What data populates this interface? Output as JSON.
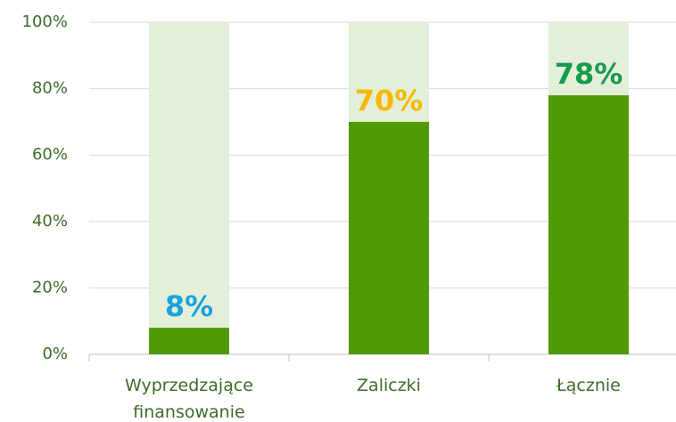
{
  "chart_data": {
    "type": "bar",
    "categories": [
      "Wyprzedzające finansowanie",
      "Zaliczki",
      "Łącznie"
    ],
    "values": [
      8,
      70,
      78
    ],
    "value_labels": [
      "8%",
      "70%",
      "78%"
    ],
    "label_colors": [
      "#1ba3dd",
      "#f5b700",
      "#169b4f"
    ],
    "color": "#4f9a06",
    "track_color": "#e3efd9",
    "ylim": [
      0,
      100
    ],
    "yticks": [
      {
        "value": 0,
        "label": "0%"
      },
      {
        "value": 20,
        "label": "20%"
      },
      {
        "value": 40,
        "label": "40%"
      },
      {
        "value": 60,
        "label": "60%"
      },
      {
        "value": 80,
        "label": "80%"
      },
      {
        "value": 100,
        "label": "100%"
      }
    ],
    "grid": true
  }
}
